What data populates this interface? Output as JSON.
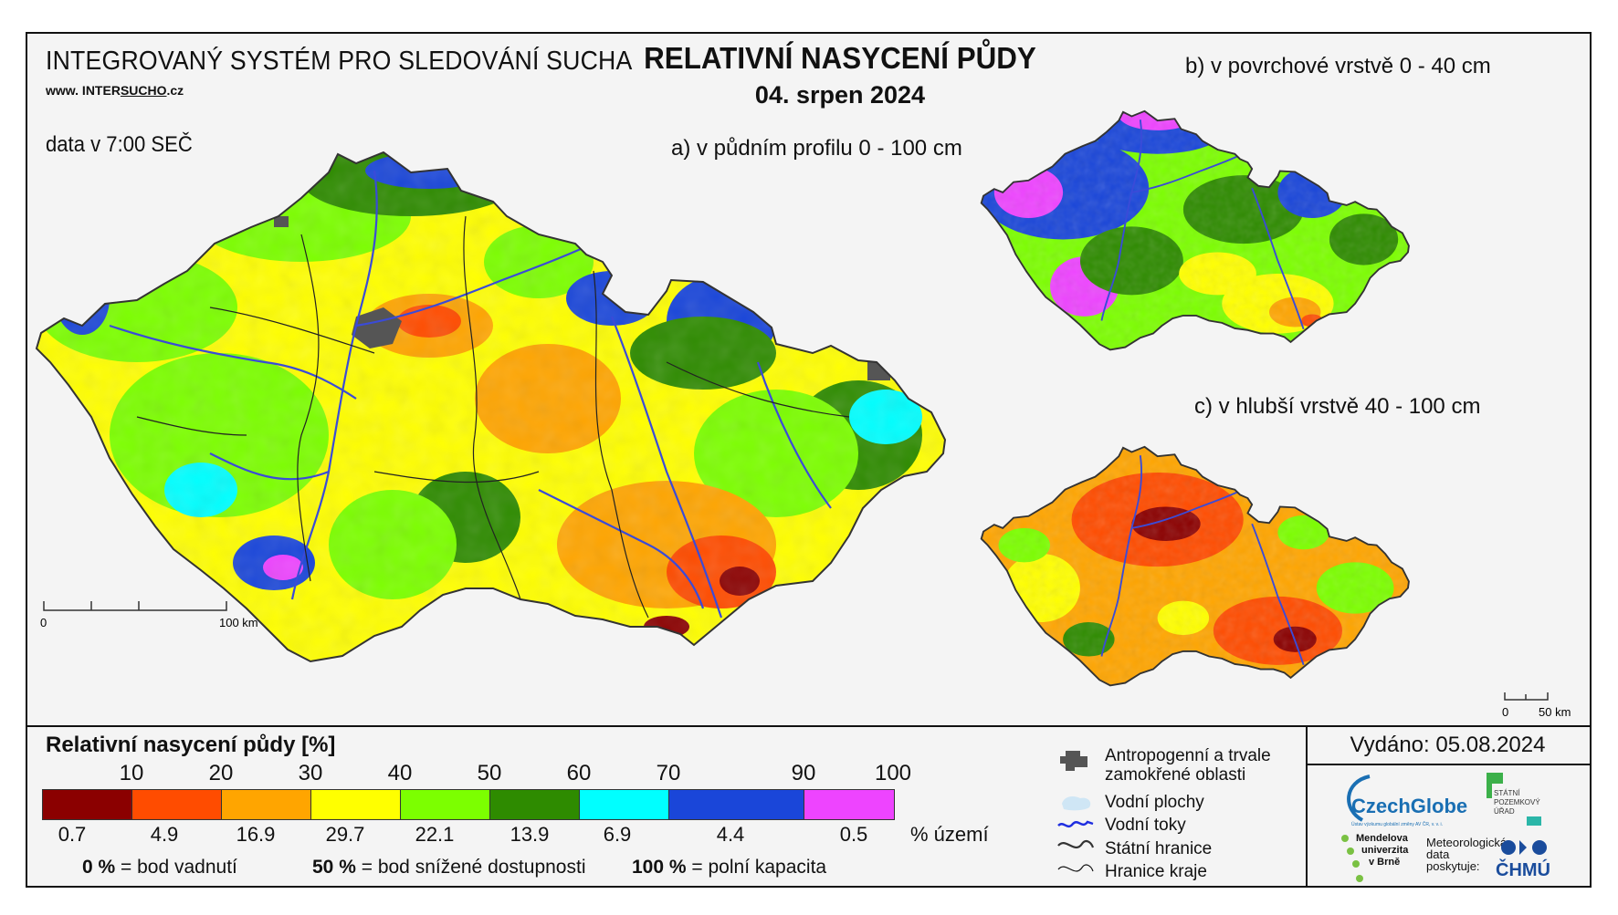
{
  "header": {
    "system_title": "INTEGROVANÝ SYSTÉM PRO SLEDOVÁNÍ SUCHA",
    "url_prefix": "www. INTER",
    "url_underlined": "SUCHO",
    "url_suffix": ".cz",
    "data_time": "data v 7:00 SEČ",
    "title": "RELATIVNÍ NASYCENÍ PŮDY",
    "date": "04. srpen 2024"
  },
  "maps": {
    "a_label": "a) v půdním profilu 0 - 100 cm",
    "b_label": "b) v povrchové vrstvě 0 - 40 cm",
    "c_label": "c) v hlubší vrstvě 40 - 100 cm",
    "scale_main": {
      "start": "0",
      "end": "100 km"
    },
    "scale_small": {
      "start": "0",
      "end": "50 km"
    }
  },
  "legend": {
    "title": "Relativní nasycení půdy [%]",
    "thresholds": [
      "10",
      "20",
      "30",
      "40",
      "50",
      "60",
      "70",
      "90",
      "100"
    ],
    "classes": [
      {
        "color": "#8b0000",
        "area_pct": "0.7"
      },
      {
        "color": "#ff4c00",
        "area_pct": "4.9"
      },
      {
        "color": "#ffa500",
        "area_pct": "16.9"
      },
      {
        "color": "#ffff00",
        "area_pct": "29.7"
      },
      {
        "color": "#7cff00",
        "area_pct": "22.1"
      },
      {
        "color": "#2e8b00",
        "area_pct": "13.9"
      },
      {
        "color": "#00ffff",
        "area_pct": "6.9"
      },
      {
        "color": "#1a46d9",
        "area_pct": "4.4"
      },
      {
        "color": "#ee44ff",
        "area_pct": "0.5"
      }
    ],
    "area_unit": "% území",
    "definitions": [
      {
        "key": "0 %",
        "text": "= bod vadnutí"
      },
      {
        "key": "50 %",
        "text": "= bod snížené dostupnosti"
      },
      {
        "key": "100 %",
        "text": "= polní kapacita"
      }
    ]
  },
  "symbols": {
    "anthropogenic": "Antropogenní a trvale zamokřené oblasti",
    "water_bodies": "Vodní plochy",
    "watercourses": "Vodní toky",
    "state_border": "Státní hranice",
    "region_border": "Hranice kraje"
  },
  "issued": "Vydáno: 05.08.2024",
  "logos": {
    "czechglobe": "CzechGlobe",
    "czechglobe_sub": "Ústav výzkumu globální změny AV ČR, v. v. i.",
    "spu": [
      "STÁTNÍ",
      "POZEMKOVÝ",
      "ÚŘAD"
    ],
    "mendel": [
      "Mendelova",
      "univerzita",
      "v Brně"
    ],
    "meteo": [
      "Meteorologická",
      "data",
      "poskytuje:"
    ],
    "chmu": "ČHMÚ"
  },
  "colors": {
    "very_dry": "#8b0000",
    "dry": "#ff4c00",
    "mid_dry": "#ffa500",
    "low": "#ffff00",
    "mid": "#7cff00",
    "green": "#2e8b00",
    "wet": "#00ffff",
    "very_wet": "#1a46d9",
    "saturated": "#ee44ff",
    "river": "#3a4bd8",
    "urban": "#555555"
  }
}
